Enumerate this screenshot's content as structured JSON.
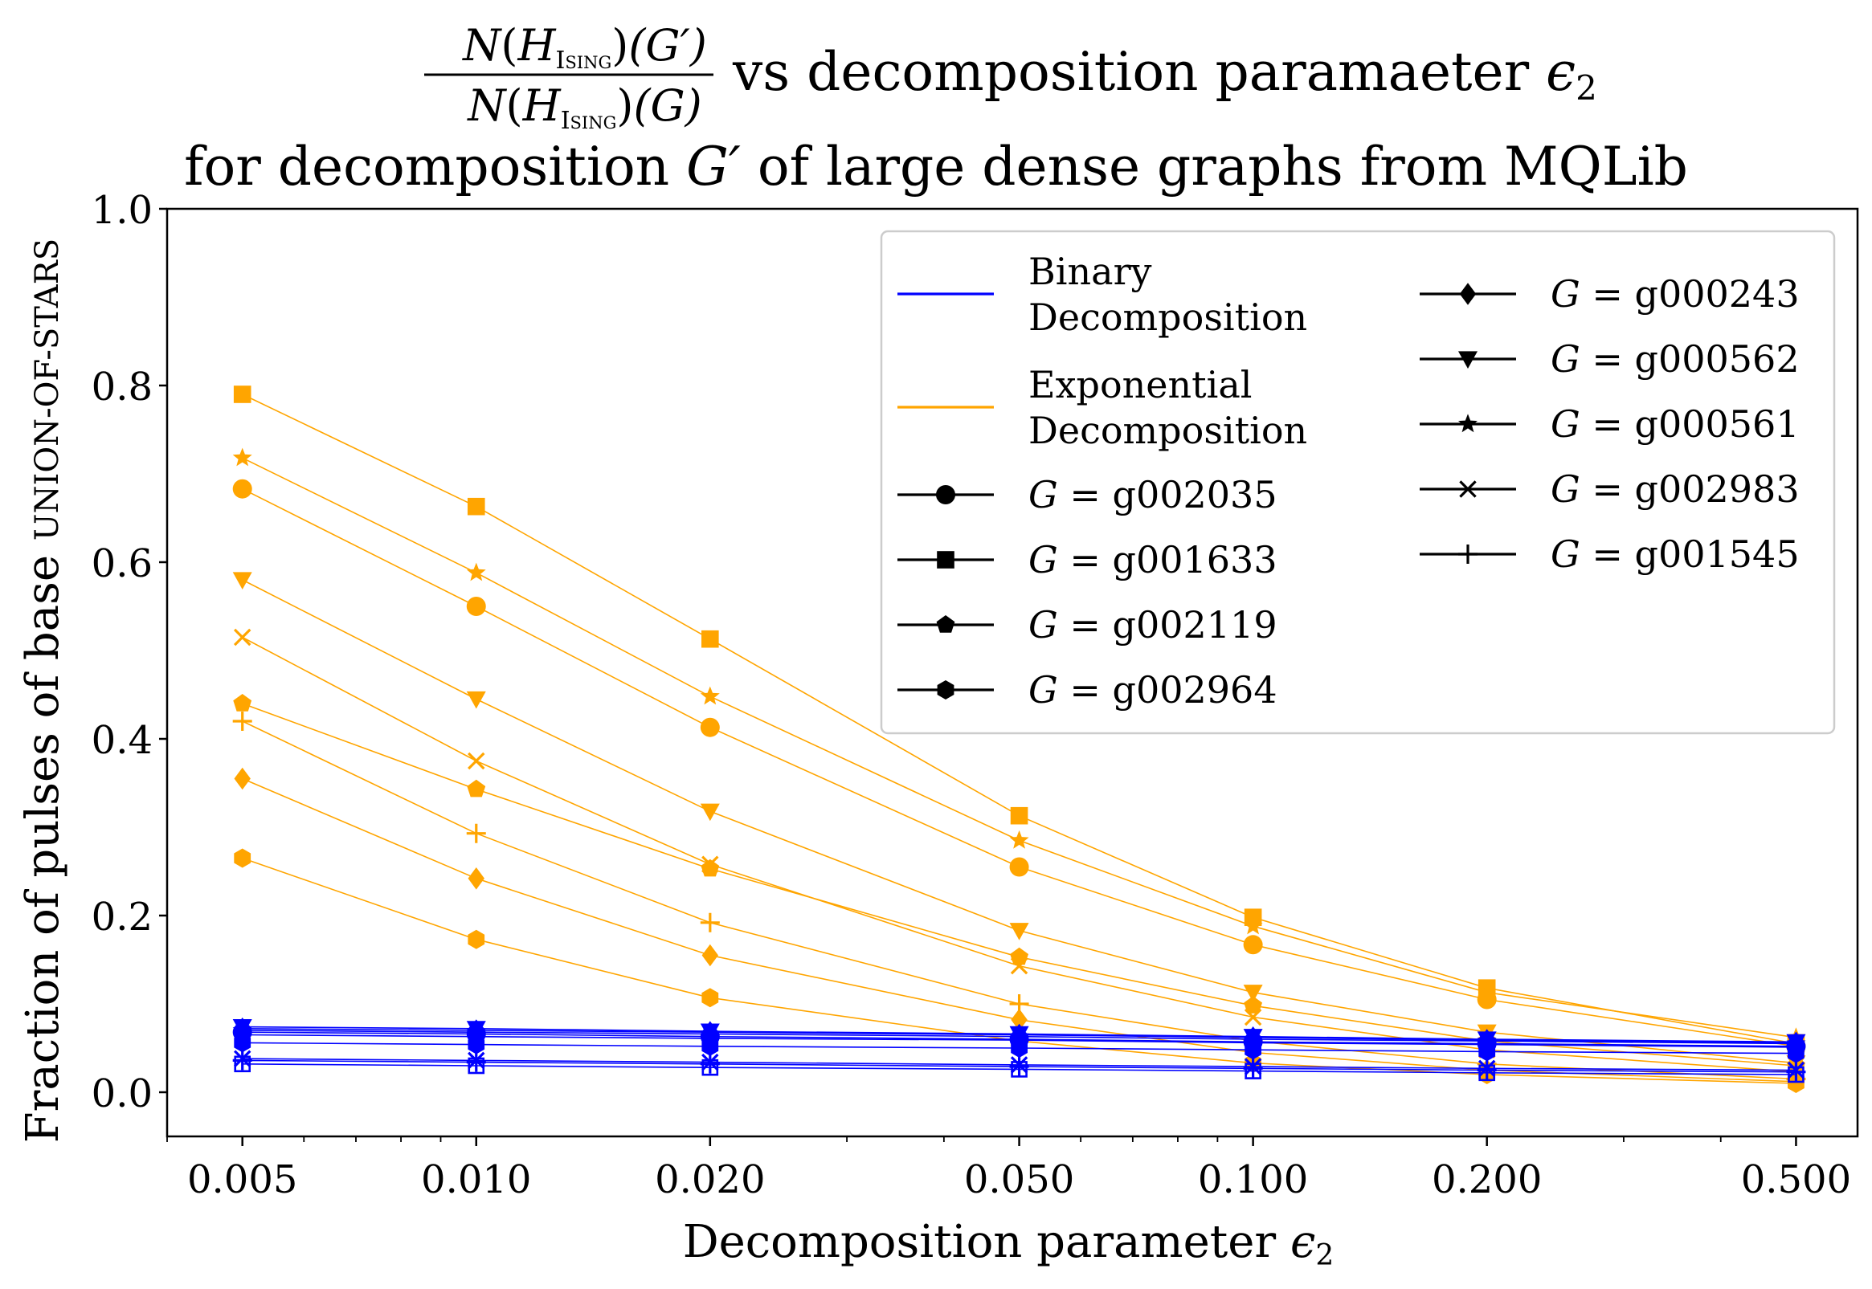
{
  "chart_data": {
    "type": "line",
    "title": {
      "frac_num_N": "N",
      "frac_num_H": "H",
      "frac_num_sub": "Ising",
      "frac_num_arg": "(G′)",
      "frac_den_N": "N",
      "frac_den_H": "H",
      "frac_den_sub": "Ising",
      "frac_den_arg": "(G)",
      "line1_text": "vs decomposition paramaeter ",
      "eps_symbol": "ϵ",
      "eps_sub": "2",
      "line2_pre": "for decomposition ",
      "line2_G": "G′",
      "line2_post": " of large dense graphs from MQLib"
    },
    "xlabel": {
      "text": "Decomposition parameter ",
      "eps_symbol": "ϵ",
      "eps_sub": "2"
    },
    "ylabel": {
      "text": "Fraction of pulses of base ",
      "smallcaps": "UNION-OF-STARS"
    },
    "x_scale": "log",
    "xlim": [
      0.004,
      0.6
    ],
    "ylim": [
      -0.05,
      1.0
    ],
    "x": [
      0.005,
      0.01,
      0.02,
      0.05,
      0.1,
      0.2,
      0.5
    ],
    "xtick_labels": [
      "0.005",
      "0.010",
      "0.020",
      "0.050",
      "0.100",
      "0.200",
      "0.500"
    ],
    "yticks": [
      0.0,
      0.2,
      0.4,
      0.6,
      0.8,
      1.0
    ],
    "ytick_labels": [
      "0.0",
      "0.2",
      "0.4",
      "0.6",
      "0.8",
      "1.0"
    ],
    "colors": {
      "binary": "#0000ff",
      "exponential": "#ffa500",
      "legend_marker": "#000000"
    },
    "legend_placement": "top-right",
    "legend": {
      "color_entries": [
        {
          "line1": "Binary",
          "line2": "Decomposition",
          "color_key": "binary"
        },
        {
          "line1": "Exponential",
          "line2": "Decomposition",
          "color_key": "exponential"
        }
      ]
    },
    "graphs": [
      {
        "name": "g002035",
        "marker": "circle",
        "binary": [
          0.068,
          0.066,
          0.063,
          0.06,
          0.057,
          0.055,
          0.052
        ],
        "exponential": [
          0.683,
          0.55,
          0.413,
          0.255,
          0.167,
          0.105,
          0.052
        ]
      },
      {
        "name": "g001633",
        "marker": "square",
        "binary": [
          0.032,
          0.03,
          0.028,
          0.026,
          0.024,
          0.022,
          0.02
        ],
        "exponential": [
          0.79,
          0.663,
          0.513,
          0.313,
          0.198,
          0.118,
          0.055
        ]
      },
      {
        "name": "g002119",
        "marker": "pentagon",
        "binary": [
          0.065,
          0.063,
          0.061,
          0.059,
          0.056,
          0.054,
          0.051
        ],
        "exponential": [
          0.44,
          0.343,
          0.253,
          0.153,
          0.098,
          0.058,
          0.03
        ]
      },
      {
        "name": "g002964",
        "marker": "hexagon",
        "binary": [
          0.056,
          0.054,
          0.052,
          0.05,
          0.048,
          0.046,
          0.044
        ],
        "exponential": [
          0.265,
          0.173,
          0.107,
          0.058,
          0.033,
          0.02,
          0.01
        ]
      },
      {
        "name": "g000243",
        "marker": "diamond",
        "binary": [
          0.072,
          0.07,
          0.068,
          0.065,
          0.062,
          0.059,
          0.056
        ],
        "exponential": [
          0.355,
          0.242,
          0.155,
          0.082,
          0.045,
          0.025,
          0.012
        ]
      },
      {
        "name": "g000562",
        "marker": "triangle",
        "binary": [
          0.074,
          0.072,
          0.069,
          0.066,
          0.063,
          0.06,
          0.057
        ],
        "exponential": [
          0.58,
          0.445,
          0.318,
          0.183,
          0.113,
          0.068,
          0.033
        ]
      },
      {
        "name": "g000561",
        "marker": "star",
        "binary": [
          0.07,
          0.068,
          0.066,
          0.063,
          0.06,
          0.058,
          0.055
        ],
        "exponential": [
          0.718,
          0.588,
          0.448,
          0.285,
          0.188,
          0.113,
          0.062
        ]
      },
      {
        "name": "g002983",
        "marker": "x",
        "binary": [
          0.038,
          0.036,
          0.034,
          0.031,
          0.029,
          0.027,
          0.025
        ],
        "exponential": [
          0.515,
          0.375,
          0.258,
          0.143,
          0.085,
          0.048,
          0.023
        ]
      },
      {
        "name": "g001545",
        "marker": "plus",
        "binary": [
          0.036,
          0.034,
          0.032,
          0.029,
          0.027,
          0.025,
          0.023
        ],
        "exponential": [
          0.42,
          0.293,
          0.192,
          0.1,
          0.058,
          0.032,
          0.015
        ]
      }
    ]
  }
}
